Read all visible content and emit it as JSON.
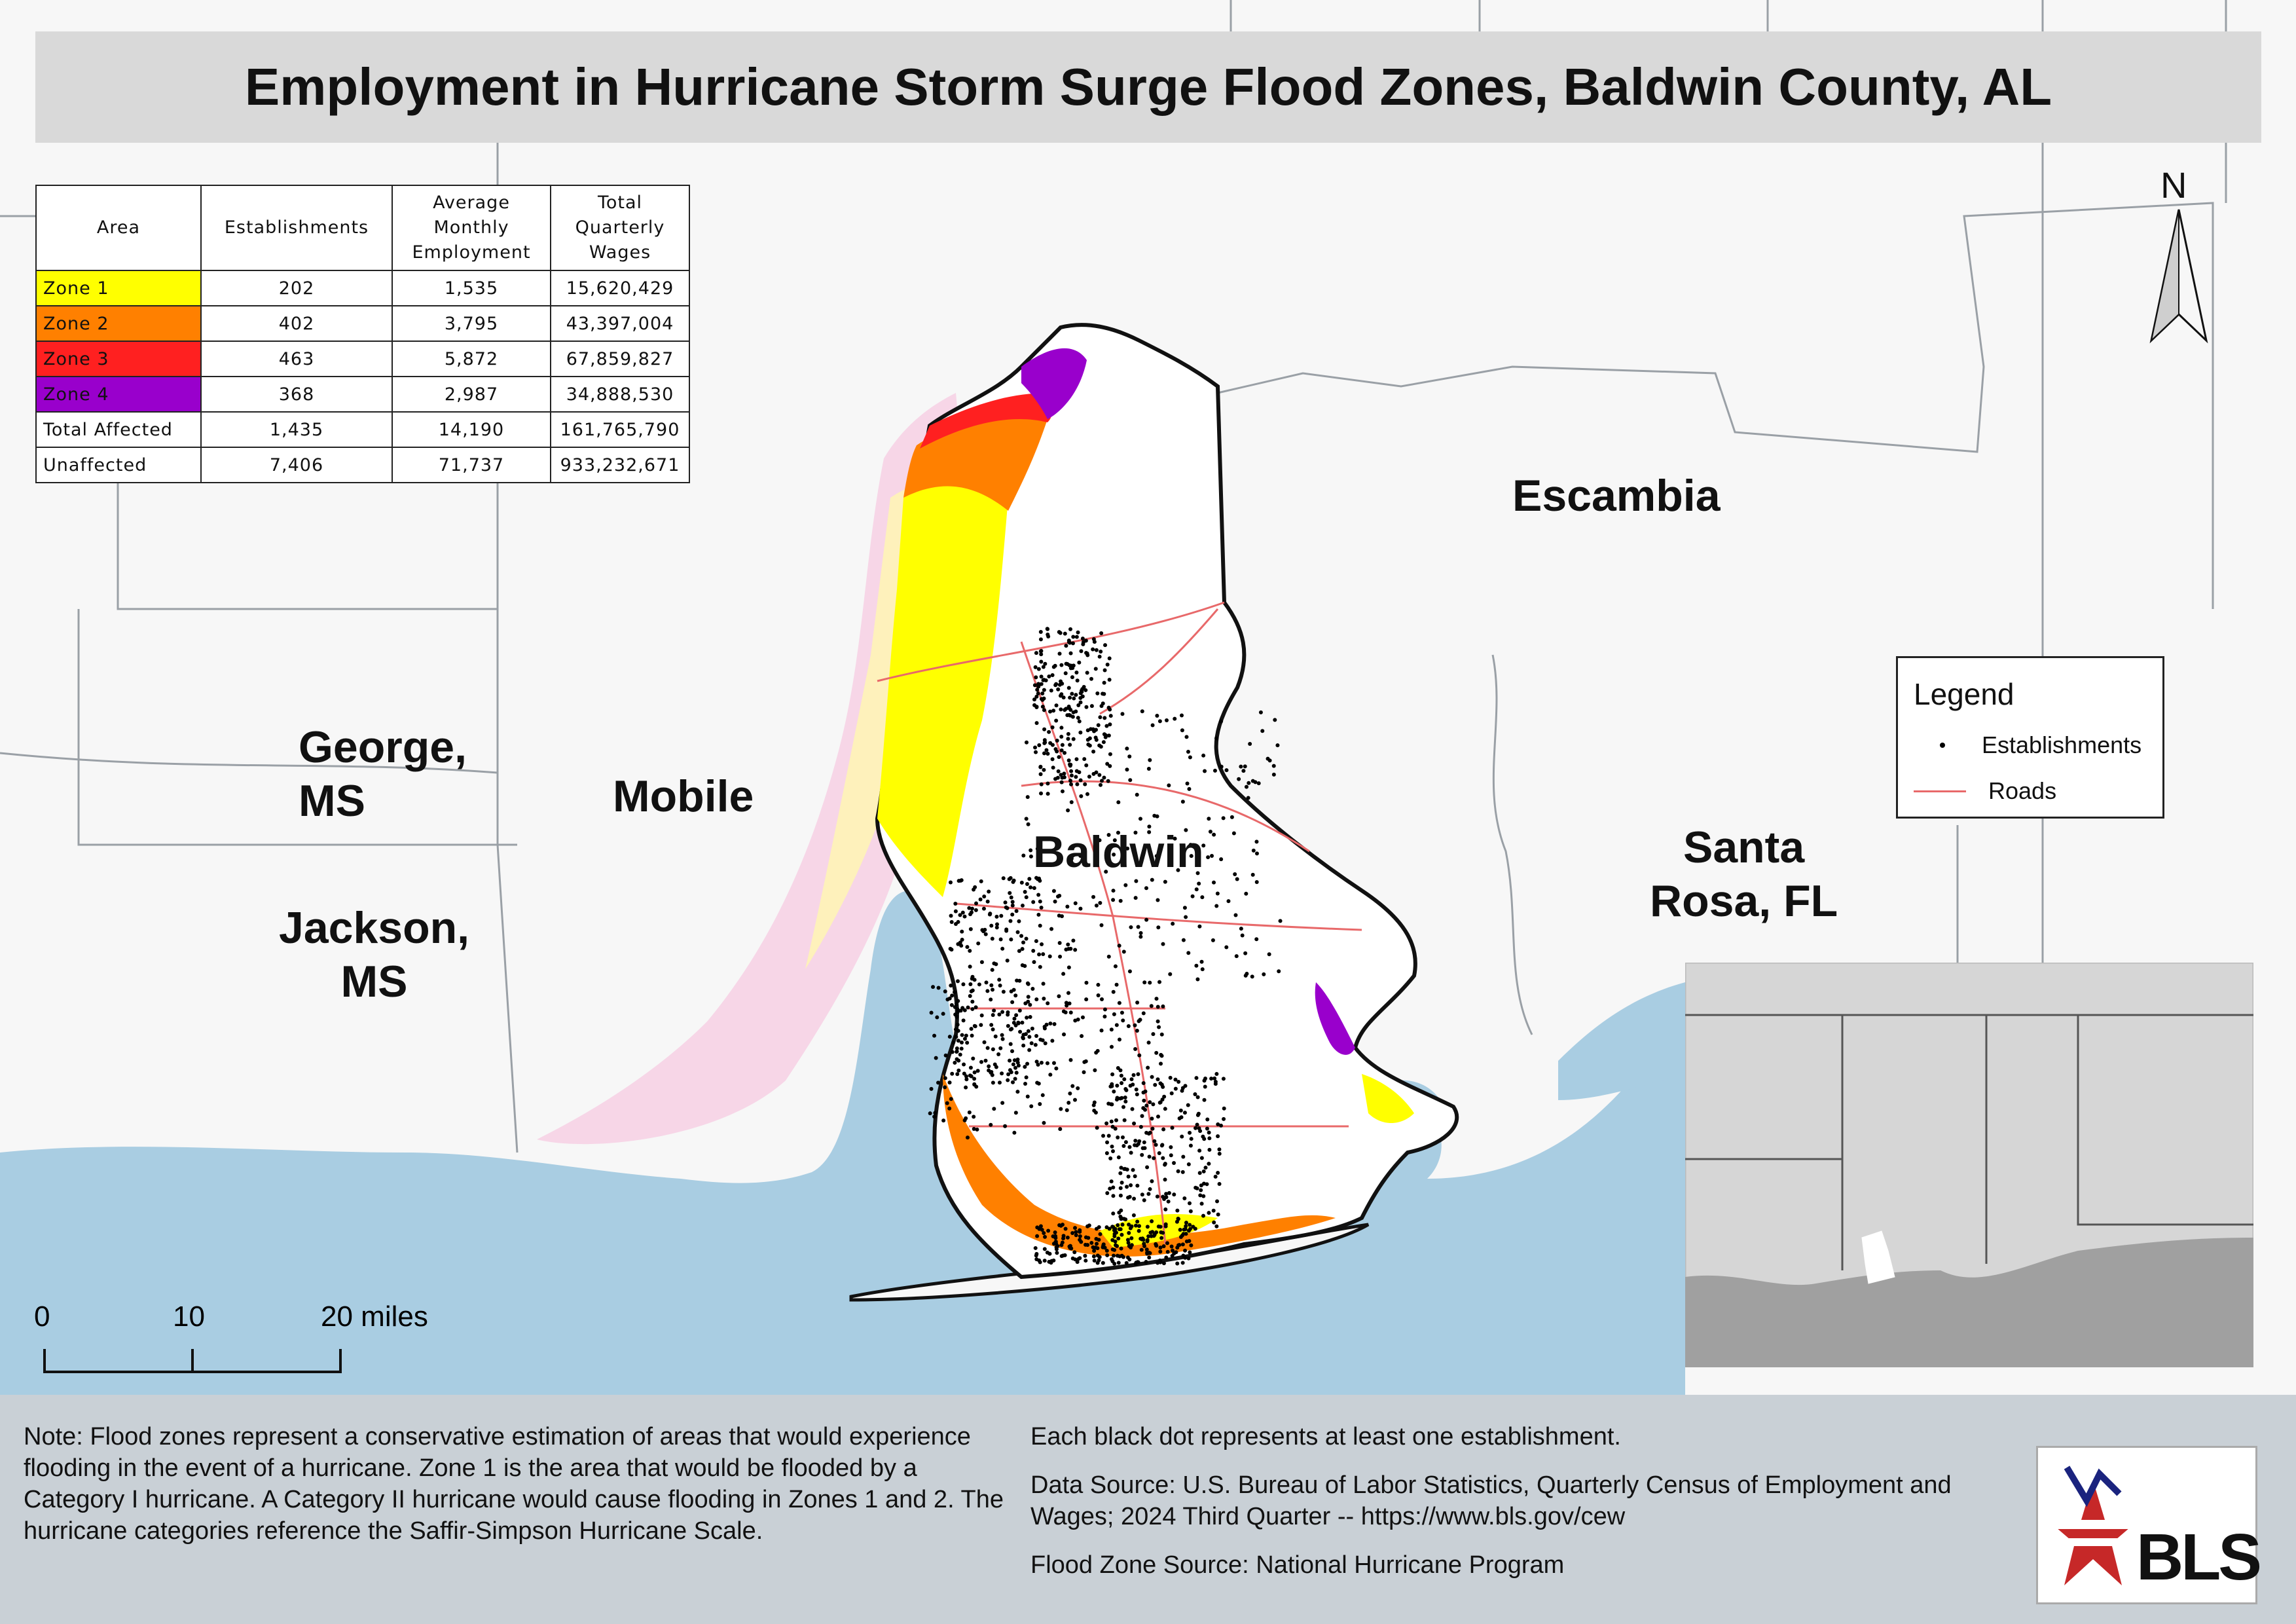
{
  "title": "Employment in Hurricane Storm Surge Flood Zones, Baldwin County, AL",
  "table": {
    "headers": [
      "Area",
      "Establishments",
      "Average Monthly Employment",
      "Total Quarterly Wages"
    ],
    "rows": [
      {
        "area": "Zone 1",
        "color": "#ffff00",
        "establishments": "202",
        "employment": "1,535",
        "wages": "15,620,429"
      },
      {
        "area": "Zone 2",
        "color": "#ff8000",
        "establishments": "402",
        "employment": "3,795",
        "wages": "43,397,004"
      },
      {
        "area": "Zone 3",
        "color": "#ff2020",
        "establishments": "463",
        "employment": "5,872",
        "wages": "67,859,827"
      },
      {
        "area": "Zone 4",
        "color": "#9900cc",
        "establishments": "368",
        "employment": "2,987",
        "wages": "34,888,530"
      },
      {
        "area": "Total Affected",
        "color": "#ffffff",
        "establishments": "1,435",
        "employment": "14,190",
        "wages": "161,765,790"
      },
      {
        "area": "Unaffected",
        "color": "#ffffff",
        "establishments": "7,406",
        "employment": "71,737",
        "wages": "933,232,671"
      }
    ]
  },
  "counties": {
    "escambia": "Escambia",
    "george_1": "George,",
    "george_2": "MS",
    "mobile": "Mobile",
    "baldwin": "Baldwin",
    "jackson_1": "Jackson,",
    "jackson_2": "MS",
    "santa_rosa_1": "Santa",
    "santa_rosa_2": "Rosa, FL"
  },
  "legend": {
    "title": "Legend",
    "establishments": "Establishments",
    "roads": "Roads"
  },
  "north_label": "N",
  "scale": {
    "t0": "0",
    "t10": "10",
    "t20": "20 miles"
  },
  "footer": {
    "note": "Note: Flood zones represent a conservative estimation of areas that would experience flooding in the event of a hurricane. Zone 1 is the area that would be flooded by a Category I hurricane. A Category II hurricane would cause flooding in Zones 1 and 2. The hurricane categories reference the Saffir-Simpson Hurricane Scale.",
    "dot_note": "Each black dot represents at least one establishment.",
    "data_source": "Data Source: U.S. Bureau of Labor Statistics, Quarterly Census of Employment and Wages; 2024 Third Quarter -- https://www.bls.gov/cew",
    "flood_source": "Flood Zone Source: National Hurricane Program",
    "logo": "BLS"
  },
  "colors": {
    "water": "#a9cde2",
    "land": "#f7f7f7",
    "zone1": "#ffff00",
    "zone2": "#ff8000",
    "zone3": "#ff2020",
    "zone4": "#9900cc",
    "road": "#e8696a"
  }
}
